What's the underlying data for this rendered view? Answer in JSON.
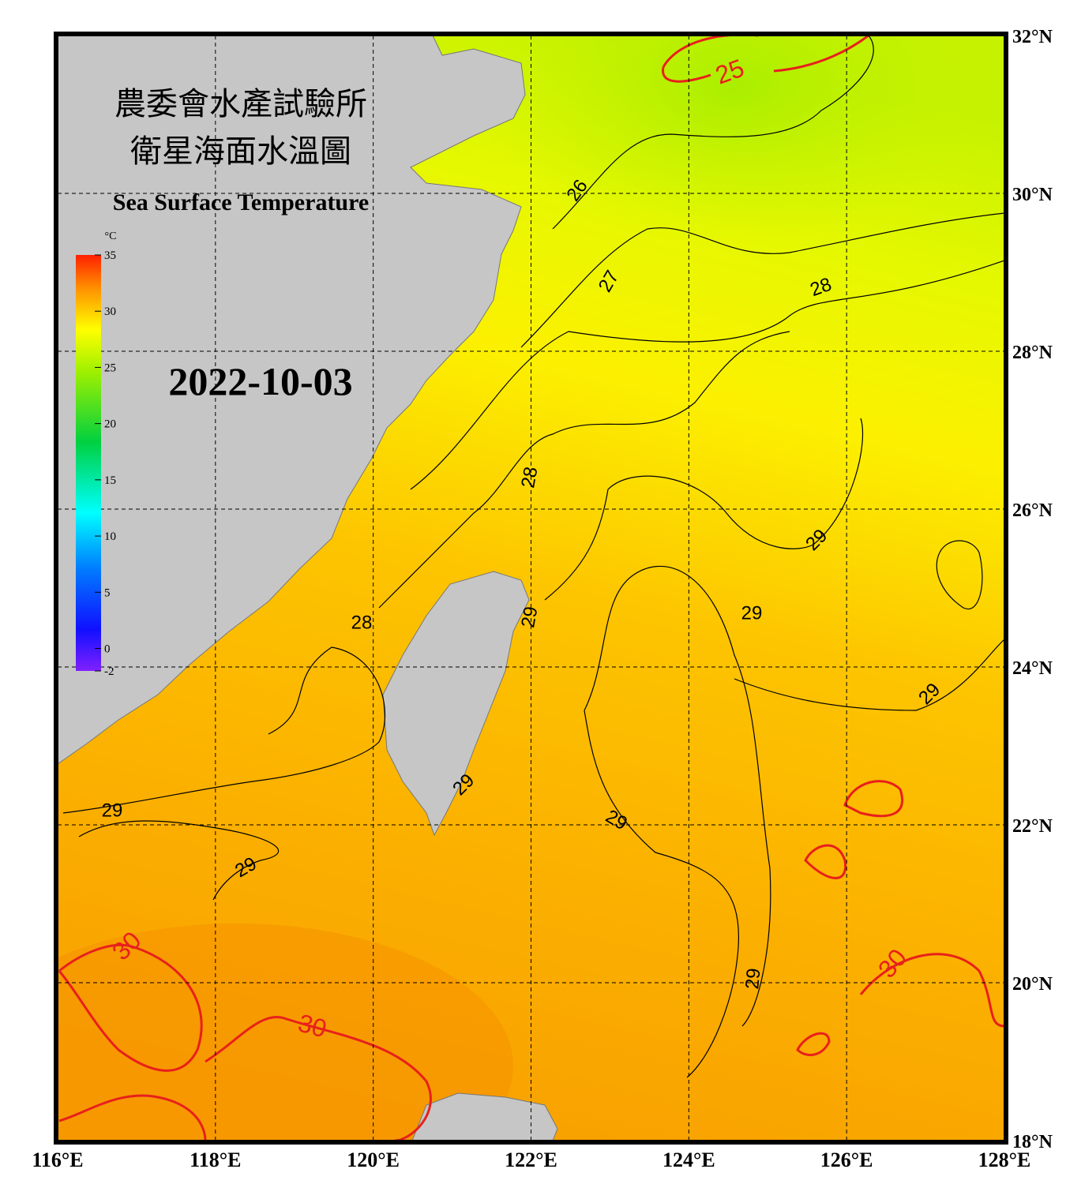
{
  "title_zh": [
    "農委會水產試驗所",
    "衛星海面水溫圖"
  ],
  "title_en": "Sea Surface Temperature",
  "date": "2022-10-03",
  "colorbar": {
    "unit": "°C",
    "lim": [
      -2,
      35
    ],
    "ticks": [
      -2,
      0,
      5,
      10,
      15,
      20,
      25,
      30,
      35
    ]
  },
  "lon_ticks": [
    {
      "value": 116,
      "label": "116°E"
    },
    {
      "value": 118,
      "label": "118°E"
    },
    {
      "value": 120,
      "label": "120°E"
    },
    {
      "value": 122,
      "label": "122°E"
    },
    {
      "value": 124,
      "label": "124°E"
    },
    {
      "value": 126,
      "label": "126°E"
    },
    {
      "value": 128,
      "label": "128°E"
    }
  ],
  "lat_ticks": [
    {
      "value": 32,
      "label": "32°N"
    },
    {
      "value": 30,
      "label": "30°N"
    },
    {
      "value": 28,
      "label": "28°N"
    },
    {
      "value": 26,
      "label": "26°N"
    },
    {
      "value": 24,
      "label": "24°N"
    },
    {
      "value": 22,
      "label": "22°N"
    },
    {
      "value": 20,
      "label": "20°N"
    },
    {
      "value": 18,
      "label": "18°N"
    }
  ],
  "contour_labels": [
    {
      "value": 25,
      "color": "#e8201c"
    },
    {
      "value": 26,
      "color": "#000000"
    },
    {
      "value": 27,
      "color": "#000000"
    },
    {
      "value": 28,
      "color": "#000000"
    },
    {
      "value": 28,
      "color": "#000000"
    },
    {
      "value": 28,
      "color": "#000000"
    },
    {
      "value": 29,
      "color": "#000000"
    },
    {
      "value": 29,
      "color": "#000000"
    },
    {
      "value": 29,
      "color": "#000000"
    },
    {
      "value": 29,
      "color": "#000000"
    },
    {
      "value": 29,
      "color": "#000000"
    },
    {
      "value": 29,
      "color": "#000000"
    },
    {
      "value": 29,
      "color": "#000000"
    },
    {
      "value": 29,
      "color": "#000000"
    },
    {
      "value": 29,
      "color": "#000000"
    },
    {
      "value": 30,
      "color": "#e8201c"
    },
    {
      "value": 30,
      "color": "#e8201c"
    },
    {
      "value": 30,
      "color": "#e8201c"
    }
  ]
}
